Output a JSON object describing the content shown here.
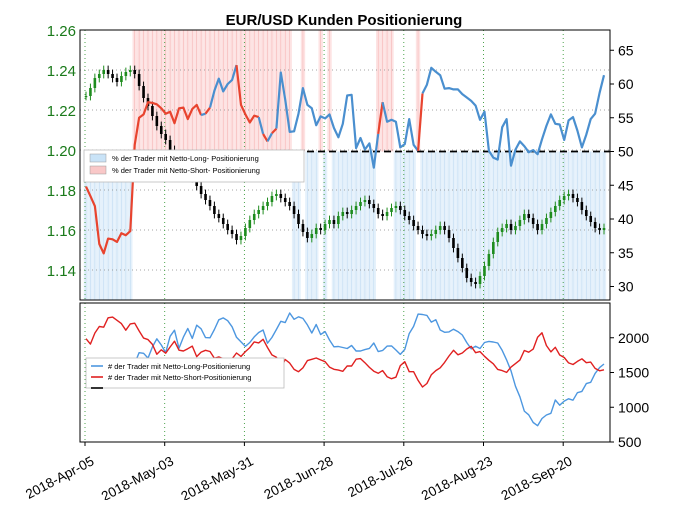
{
  "chart_data": [
    {
      "type": "line",
      "title": "EUR/USD Kunden Positionierung",
      "left_axis": {
        "ylim": [
          1.125,
          1.26
        ],
        "ticks": [
          "1.26",
          "1.24",
          "1.22",
          "1.20",
          "1.18",
          "1.16",
          "1.14"
        ],
        "tick_values": [
          1.26,
          1.24,
          1.22,
          1.2,
          1.18,
          1.16,
          1.14
        ],
        "tick_color": "#1a7a1a"
      },
      "right_axis": {
        "ylim": [
          28,
          68
        ],
        "ticks": [
          "65",
          "60",
          "55",
          "50",
          "45",
          "40",
          "35",
          "30"
        ],
        "tick_values": [
          65,
          60,
          55,
          50,
          45,
          40,
          35,
          30
        ]
      },
      "reference_line": 50,
      "legend": [
        {
          "label": "% der Trader mit Netto-Long- Positionierung",
          "color": "#c9e3f7"
        },
        {
          "label": "% der Trader mit Netto-Short- Positionierung",
          "color": "#f9c8c8"
        }
      ],
      "legend_placement": "upper-left",
      "grid": true,
      "x_ticks": [
        "2018-Apr-05",
        "2018-May-03",
        "2018-May-31",
        "2018-Jun-28",
        "2018-Jul-26",
        "2018-Aug-23",
        "2018-Sep-20"
      ],
      "price_series": {
        "name": "EUR/USD",
        "values": [
          1.227,
          1.231,
          1.236,
          1.238,
          1.24,
          1.238,
          1.236,
          1.234,
          1.237,
          1.239,
          1.24,
          1.238,
          1.232,
          1.226,
          1.222,
          1.217,
          1.212,
          1.208,
          1.205,
          1.2,
          1.197,
          1.195,
          1.193,
          1.19,
          1.186,
          1.182,
          1.178,
          1.175,
          1.172,
          1.168,
          1.166,
          1.163,
          1.16,
          1.158,
          1.155,
          1.157,
          1.161,
          1.165,
          1.168,
          1.17,
          1.172,
          1.174,
          1.177,
          1.178,
          1.176,
          1.174,
          1.172,
          1.168,
          1.163,
          1.159,
          1.156,
          1.158,
          1.161,
          1.16,
          1.163,
          1.165,
          1.163,
          1.167,
          1.169,
          1.168,
          1.17,
          1.172,
          1.174,
          1.175,
          1.173,
          1.171,
          1.168,
          1.167,
          1.169,
          1.171,
          1.172,
          1.17,
          1.167,
          1.165,
          1.162,
          1.16,
          1.158,
          1.157,
          1.158,
          1.16,
          1.162,
          1.16,
          1.156,
          1.151,
          1.146,
          1.141,
          1.136,
          1.134,
          1.133,
          1.137,
          1.142,
          1.148,
          1.154,
          1.159,
          1.161,
          1.163,
          1.16,
          1.162,
          1.165,
          1.168,
          1.166,
          1.163,
          1.16,
          1.163,
          1.166,
          1.169,
          1.172,
          1.175,
          1.177,
          1.178,
          1.176,
          1.174,
          1.17,
          1.167,
          1.164,
          1.161,
          1.16,
          1.161
        ]
      },
      "long_pct_series": {
        "name": "% der Trader mit Netto-Long- Positionierung",
        "values": [
          30.5,
          30.8,
          30.2,
          31,
          30.6,
          30.9,
          30.4,
          30.7,
          31,
          30.5,
          30.3,
          46.4,
          50.7,
          52.4,
          53.5,
          54.8,
          54.3,
          53.8,
          54.8,
          54.6,
          53.5,
          55.2,
          54.3,
          53.6,
          53,
          55.4,
          55.4,
          53.9,
          56.5,
          59,
          60.8,
          58.9,
          60,
          60.6,
          60.6,
          54.6,
          52.1,
          50.8,
          50,
          55.1,
          51.8,
          51.5,
          51.9,
          53.4,
          61.7,
          57.7,
          52.9,
          53,
          55.6,
          59.4,
          56.9,
          56.4,
          53.9,
          55.2,
          54.9,
          55.5,
          53.5,
          52.1,
          54.1,
          58.3,
          58.4,
          50.5,
          52,
          50.3,
          51.2,
          47.6,
          49.4,
          57.3,
          54.4,
          54.7,
          54.4,
          50.6,
          51.1,
          54.8,
          51,
          48.2,
          58.6,
          59.9,
          62.4,
          61.8,
          61.3,
          59.3,
          59.4,
          59.2,
          59.2,
          58.5,
          58,
          57.5,
          56.8,
          54.7,
          55.9,
          50.1,
          49.1,
          48.8,
          53.6,
          54.8,
          47.9,
          50.3,
          51.5,
          50.8,
          49.9,
          50.2,
          49.6,
          51.8,
          53.8,
          55.5,
          54.1,
          54,
          51.7,
          54.6,
          55.1,
          53.1,
          50.6,
          52.5,
          54.8,
          55.6,
          58.7,
          61.3
        ]
      },
      "short_pct_series": {
        "name": "% der Trader mit Netto-Short- Positionierung",
        "values": [
          44.8,
          43.4,
          41.9,
          36.3,
          34.9,
          37.1,
          37,
          36.6,
          37.9,
          37.6,
          38.2,
          51,
          55,
          55.5,
          57.3,
          57.2,
          57,
          56.4,
          55.6,
          55.9,
          54.2,
          56.4,
          56.5,
          54.8,
          56.3,
          56.9,
          54.4,
          55.6,
          53.9,
          55.3,
          55.1,
          54.6,
          53.5,
          57.7,
          62.8,
          56.9,
          55.5,
          54.3,
          55.3,
          54,
          52.6,
          50.8,
          52.7,
          51.5,
          53.1,
          52.6,
          52.4,
          47.8,
          48.2,
          51.5,
          48.6,
          49.7,
          49.6,
          51.1,
          48.6,
          51.2,
          47.1,
          44.2,
          46.4,
          42.9,
          44.6,
          42.9,
          43.5,
          45.5,
          45.8,
          49.7,
          52.6,
          52.3,
          53.5,
          51.8,
          48,
          45.6,
          46.5,
          47.2,
          48.5,
          50.1,
          47.4,
          44.6,
          42.9,
          42.1,
          42.8,
          44.1,
          43.6,
          43.7,
          43.1,
          43.5,
          41.1,
          42.8,
          40.5,
          42.2,
          42.9,
          44.6,
          44.1,
          42.4,
          44.3,
          44.4,
          44.5,
          38.7,
          40.1,
          38.6,
          36.8,
          40,
          39.4,
          38.2,
          40.1,
          38.2,
          33.6,
          37.3,
          37.2,
          37.2,
          38.2,
          35.9,
          38.4,
          39.1,
          39.8,
          40.8,
          44.1,
          43.4
        ]
      }
    },
    {
      "type": "line",
      "y_axis": {
        "ylim": [
          500,
          2500
        ],
        "ticks": [
          "2000",
          "1500",
          "1000",
          "500"
        ],
        "tick_values": [
          2000,
          1500,
          1000,
          500
        ]
      },
      "legend": [
        {
          "label": "# der Trader mit  Netto-Long-Positionierung",
          "color": "#4d97e0"
        },
        {
          "label": "# der Trader mit  Netto-Short-Positionierung",
          "color": "#e02020"
        }
      ],
      "legend_placement": "upper-left",
      "grid": true,
      "series": [
        {
          "name": "# der Trader mit  Netto-Long-Positionierung",
          "color": "#4d97e0",
          "values": [
            1657,
            1596,
            1509,
            1560,
            1496,
            1441,
            1390,
            1398,
            1486,
            1555,
            1622,
            1629,
            1785,
            1776,
            1707,
            1867,
            1985,
            1895,
            1786,
            2021,
            2108,
            1848,
            2010,
            2133,
            1991,
            2180,
            2129,
            2002,
            2000,
            2119,
            2258,
            2286,
            2245,
            2158,
            2007,
            1941,
            1875,
            1932,
            2012,
            2076,
            2111,
            1921,
            2004,
            2119,
            2236,
            2218,
            2356,
            2265,
            2301,
            2279,
            2185,
            2069,
            2190,
            2047,
            2088,
            1968,
            1870,
            1874,
            1860,
            1845,
            1889,
            1809,
            1810,
            1829,
            1847,
            1924,
            1800,
            1816,
            1880,
            1883,
            1824,
            1760,
            1832,
            2060,
            2163,
            2341,
            2334,
            2322,
            2225,
            2259,
            2112,
            2079,
            2084,
            2123,
            2089,
            2039,
            1930,
            1840,
            1878,
            1846,
            1932,
            1947,
            1939,
            1924,
            1818,
            1682,
            1525,
            1302,
            1151,
            944,
            891,
            781,
            734,
            838,
            888,
            913,
            1104,
            1030,
            1088,
            1122,
            1101,
            1209,
            1228,
            1341,
            1359,
            1487,
            1571,
            1623
          ]
        },
        {
          "name": "# der Trader mit  Netto-Short-Positionierung",
          "color": "#e02020",
          "values": [
            1987,
            1908,
            2069,
            2162,
            2152,
            2287,
            2297,
            2251,
            2203,
            2108,
            2200,
            2209,
            2099,
            1995,
            1973,
            1905,
            1764,
            1826,
            1777,
            1867,
            1951,
            1821,
            1809,
            1842,
            1880,
            1729,
            1794,
            1819,
            1802,
            1704,
            1725,
            1697,
            1597,
            1697,
            1781,
            1731,
            1801,
            1858,
            1941,
            1926,
            1978,
            1859,
            1753,
            1720,
            1566,
            1687,
            1635,
            1545,
            1511,
            1566,
            1671,
            1690,
            1708,
            1681,
            1656,
            1578,
            1546,
            1535,
            1517,
            1595,
            1593,
            1691,
            1700,
            1641,
            1574,
            1519,
            1489,
            1527,
            1440,
            1411,
            1432,
            1599,
            1655,
            1512,
            1512,
            1387,
            1291,
            1342,
            1467,
            1527,
            1568,
            1646,
            1738,
            1820,
            1755,
            1781,
            1838,
            1876,
            1785,
            1801,
            1733,
            1675,
            1625,
            1544,
            1528,
            1501,
            1577,
            1628,
            1679,
            1817,
            1792,
            1836,
            2006,
            2071,
            1889,
            1797,
            1862,
            1752,
            1716,
            1638,
            1615,
            1660,
            1697,
            1641,
            1650,
            1559,
            1525,
            1539
          ]
        }
      ],
      "x_ticks": [
        "2018-Apr-05",
        "2018-May-03",
        "2018-May-31",
        "2018-Jun-28",
        "2018-Jul-26",
        "2018-Aug-23",
        "2018-Sep-20"
      ]
    }
  ]
}
